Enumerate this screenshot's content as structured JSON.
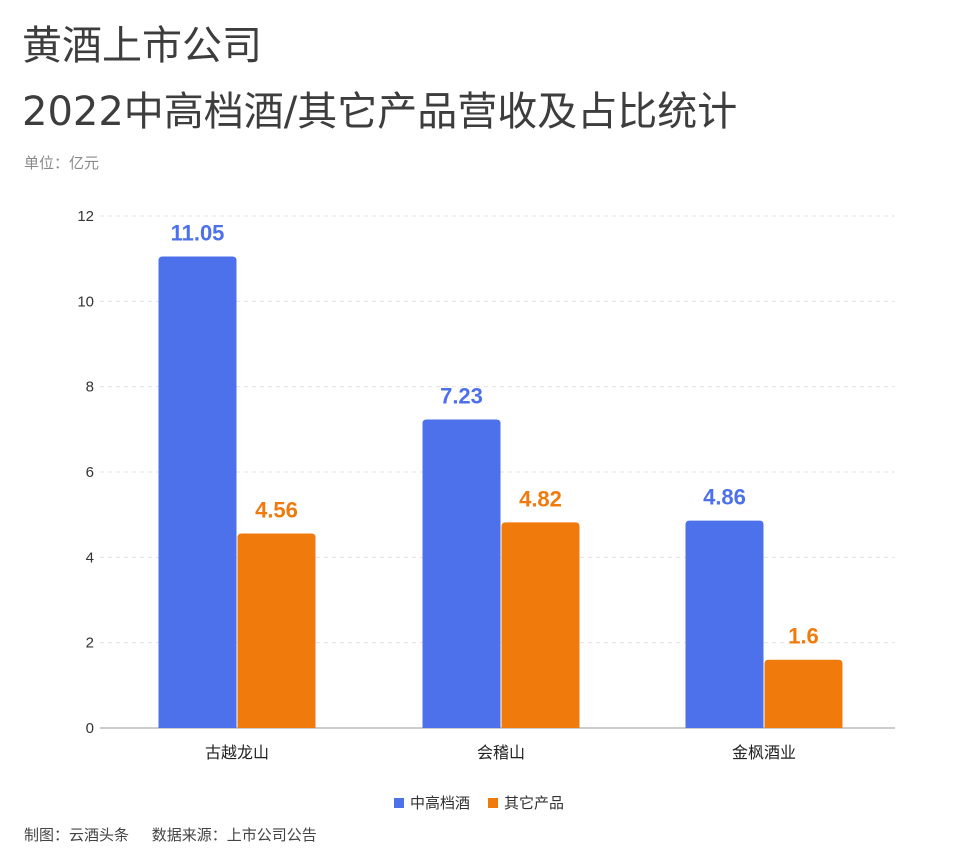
{
  "header": {
    "title_line1": "黄酒上市公司",
    "title_line2": "2022中高档酒/其它产品营收及占比统计",
    "unit": "单位：亿元"
  },
  "footer": {
    "made_by": "制图：云酒头条",
    "source": "数据来源：上市公司公告"
  },
  "colors": {
    "series1": "#4d71ea",
    "series2": "#f17a0c",
    "grid": "#e3e3e3",
    "axis": "#999999"
  },
  "chart_data": {
    "type": "bar",
    "title": "黄酒上市公司 2022中高档酒/其它产品营收及占比统计",
    "ylabel": "单位：亿元",
    "xlabel": "",
    "ylim": [
      0,
      12
    ],
    "yticks": [
      0,
      2,
      4,
      6,
      8,
      10,
      12
    ],
    "categories": [
      "古越龙山",
      "会稽山",
      "金枫酒业"
    ],
    "series": [
      {
        "name": "中高档酒",
        "values": [
          11.05,
          7.23,
          4.86
        ],
        "labels": [
          "11.05",
          "7.23",
          "4.86"
        ]
      },
      {
        "name": "其它产品",
        "values": [
          4.56,
          4.82,
          1.6
        ],
        "labels": [
          "4.56",
          "4.82",
          "1.6"
        ]
      }
    ],
    "grid": true,
    "legend": "bottom-center"
  }
}
